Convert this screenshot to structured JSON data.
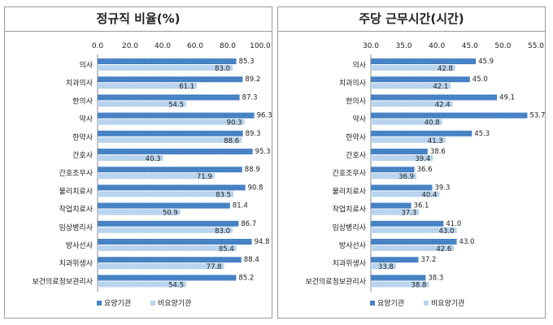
{
  "chart_data": [
    {
      "type": "bar",
      "title": "정규직 비율(%)",
      "xlim": [
        0,
        100
      ],
      "ticks": [
        "0.0",
        "20.0",
        "40.0",
        "60.0",
        "80.0",
        "100.0"
      ],
      "categories": [
        "의사",
        "치과의사",
        "한의사",
        "약사",
        "한약사",
        "간호사",
        "간호조무사",
        "물리치료사",
        "작업치료사",
        "임상병리사",
        "방사선사",
        "치과위생사",
        "보건의료정보관리사"
      ],
      "series": [
        {
          "name": "요양기관",
          "values": [
            85.3,
            89.2,
            87.3,
            96.3,
            89.3,
            95.3,
            88.9,
            90.8,
            81.4,
            86.7,
            94.8,
            88.4,
            85.2
          ]
        },
        {
          "name": "비요양기관",
          "values": [
            83.0,
            61.1,
            54.5,
            90.3,
            88.6,
            40.3,
            71.9,
            83.5,
            50.9,
            83.0,
            85.4,
            77.8,
            54.5
          ]
        }
      ],
      "legend": "bottom-left",
      "colors": {
        "series1": "#4a86c8",
        "series2": "#bcd6ef"
      }
    },
    {
      "type": "bar",
      "title": "주당 근무시간(시간)",
      "xlim": [
        30,
        55
      ],
      "ticks": [
        "30.0",
        "35.0",
        "40.0",
        "45.0",
        "50.0",
        "55.0"
      ],
      "categories": [
        "의사",
        "치과의사",
        "한의사",
        "약사",
        "한약사",
        "간호사",
        "간호조무사",
        "물리치료사",
        "작업치료사",
        "임상병리사",
        "방사선사",
        "치과위생사",
        "보건의료정보관리사"
      ],
      "series": [
        {
          "name": "요양기관",
          "values": [
            45.9,
            45.0,
            49.1,
            53.7,
            45.3,
            38.6,
            36.6,
            39.3,
            36.1,
            41.0,
            43.0,
            37.2,
            38.3
          ]
        },
        {
          "name": "비요양기관",
          "values": [
            42.8,
            42.1,
            42.4,
            40.8,
            41.3,
            39.4,
            36.9,
            40.4,
            37.3,
            43.0,
            42.6,
            33.8,
            38.8
          ]
        }
      ],
      "legend": "bottom-left",
      "colors": {
        "series1": "#4a86c8",
        "series2": "#bcd6ef"
      }
    }
  ]
}
